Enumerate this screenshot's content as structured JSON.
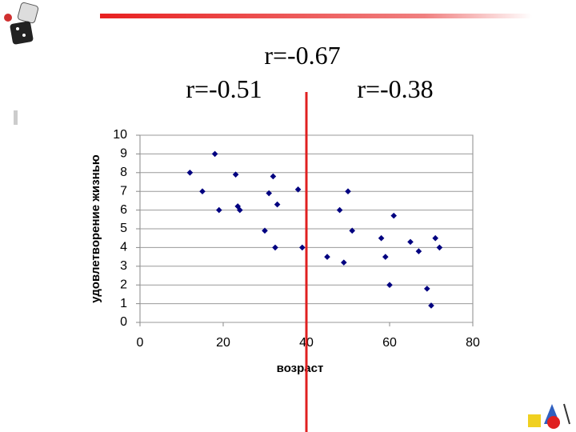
{
  "chart_data": {
    "type": "scatter",
    "annotations": [
      "r=-0.67",
      "r=-0.51",
      "r=-0.38"
    ],
    "x_label": "возраст",
    "y_label": "удовлетворение жизнью",
    "x": [
      12,
      15,
      18,
      19,
      23,
      23.5,
      24,
      30,
      31,
      32,
      32.5,
      33,
      38,
      39,
      45,
      48,
      49,
      50,
      51,
      58,
      59,
      60,
      61,
      65,
      67,
      69,
      70,
      71,
      72
    ],
    "y": [
      8,
      7,
      9,
      6,
      7.9,
      6.2,
      6,
      4.9,
      6.9,
      7.8,
      4,
      6.3,
      7.1,
      4,
      3.5,
      6,
      3.2,
      7,
      4.9,
      4.5,
      3.5,
      2,
      5.7,
      4.3,
      3.8,
      1.8,
      0.9,
      4.5,
      4
    ],
    "color": "#000080",
    "divider_x": 40,
    "divider_color": "#e02020",
    "xlim": [
      0,
      80
    ],
    "xticks": [
      0,
      20,
      40,
      60,
      80
    ],
    "ylim": [
      0,
      10
    ],
    "yticks": [
      0,
      1,
      2,
      3,
      4,
      5,
      6,
      7,
      8,
      9,
      10
    ],
    "grid": true
  }
}
